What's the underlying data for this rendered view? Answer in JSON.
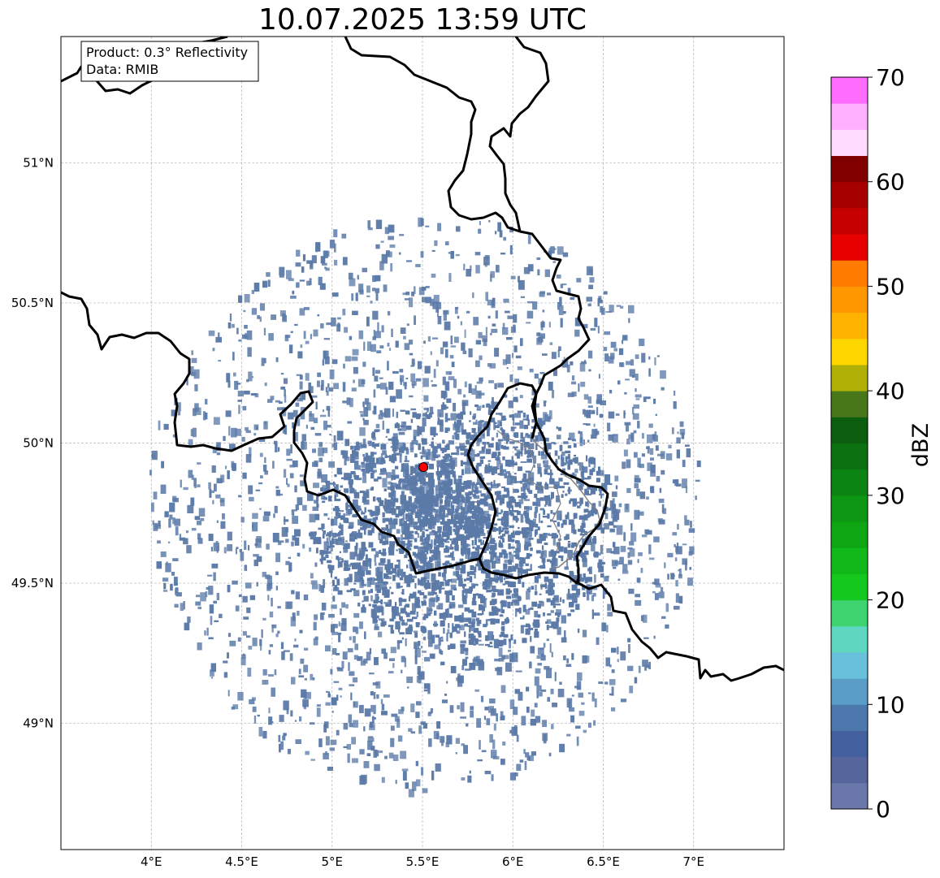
{
  "title": "10.07.2025 13:59 UTC",
  "info_box": {
    "line1": "Product: 0.3° Reflectivity",
    "line2": "Data: RMIB"
  },
  "map": {
    "lon_range": [
      3.5,
      7.5
    ],
    "lat_range": [
      48.55,
      51.45
    ],
    "lon_ticks": [
      "4°E",
      "4.5°E",
      "5°E",
      "5.5°E",
      "6°E",
      "6.5°E",
      "7°E"
    ],
    "lat_ticks": [
      "51°N",
      "50.5°N",
      "50°N",
      "49.5°N",
      "49°N"
    ],
    "radar_site": {
      "lon": 5.505,
      "lat": 49.914,
      "color": "#ff0000"
    },
    "echo_color": "#5b7aa8"
  },
  "colorbar": {
    "label": "dBZ",
    "min": 0,
    "max": 70,
    "ticks": [
      "0",
      "10",
      "20",
      "30",
      "40",
      "50",
      "60",
      "70"
    ],
    "colors": [
      "#6a77aa",
      "#56659c",
      "#44609f",
      "#4c78ad",
      "#5a9dc9",
      "#68c0da",
      "#5fd6c0",
      "#3ed36e",
      "#14c81e",
      "#10b81a",
      "#0ea713",
      "#0e9615",
      "#0c8413",
      "#0b7010",
      "#0a5e0e",
      "#48771a",
      "#b0b007",
      "#ffd700",
      "#ffb300",
      "#ff9800",
      "#ff7c00",
      "#e60000",
      "#c60000",
      "#a60000",
      "#800000",
      "#ffdcff",
      "#ffb1ff",
      "#ff6cff",
      "#ee3ced"
    ]
  }
}
